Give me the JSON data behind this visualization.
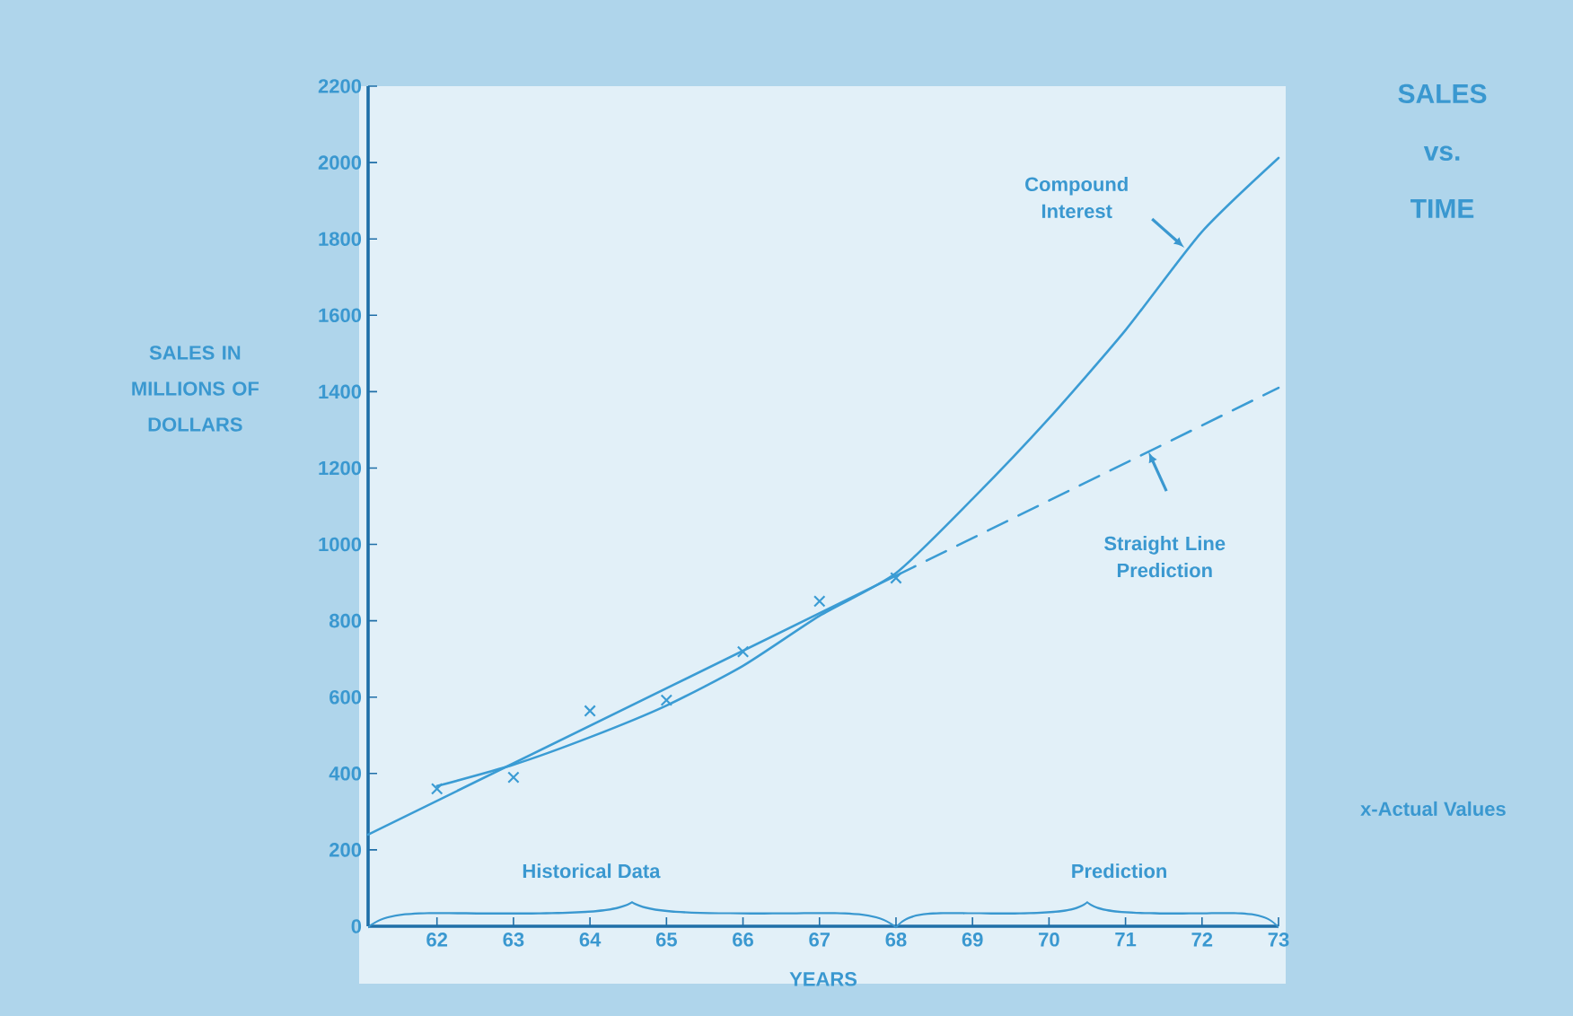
{
  "chart_data": {
    "type": "line",
    "title": "SALES vs. TIME",
    "xlabel": "YEARS",
    "ylabel": "SALES IN MILLIONS OF DOLLARS",
    "xlim": [
      61.1,
      73
    ],
    "xticks": [
      62,
      63,
      64,
      65,
      66,
      67,
      68,
      69,
      70,
      71,
      72,
      73
    ],
    "ylim": [
      0,
      2200
    ],
    "yticks": [
      0,
      200,
      400,
      600,
      800,
      1000,
      1200,
      1400,
      1600,
      1800,
      2000,
      2200
    ],
    "series": [
      {
        "color": "#3b9cd4",
        "line_style": "solid",
        "marker": "none",
        "x": [
          62,
          63,
          64,
          65,
          66,
          67,
          68,
          69,
          70,
          71,
          72,
          73
        ],
        "values": [
          367,
          423,
          495,
          578,
          682,
          813,
          925,
          1119,
          1330,
          1561,
          1819,
          2012
        ]
      },
      {
        "color": "#3b9cd4",
        "line_style": "solid",
        "marker": "none",
        "x": [
          61.1,
          68
        ],
        "values": [
          240,
          918
        ]
      },
      {
        "color": "#3b9cd4",
        "line_style": "dashed",
        "marker": "none",
        "x": [
          68,
          73
        ],
        "values": [
          918,
          1410
        ]
      },
      {
        "type": "scatter",
        "color": "#3b9cd4",
        "marker": "cross",
        "x": [
          62,
          63,
          64,
          65,
          66,
          67,
          68
        ],
        "values": [
          360,
          390,
          564,
          592,
          719,
          851,
          912
        ]
      }
    ],
    "annotations": [
      {
        "text": "Compound Interest",
        "x": 71.77,
        "y": 1777
      },
      "Straight Line Prediction",
      "Historical Data",
      "Prediction",
      "x-Actual Values"
    ]
  }
}
